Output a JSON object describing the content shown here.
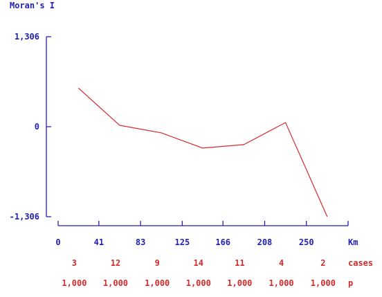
{
  "colors": {
    "axis": "#1f1fb4",
    "series": "#d42a2a",
    "annotation": "#d42a2a"
  },
  "chart_data": {
    "type": "line",
    "ylabel": "Moran's I",
    "xlabel": "Km",
    "x": [
      20.5,
      62,
      104,
      145.5,
      187,
      229,
      271
    ],
    "series": [
      {
        "values": [
          0.56,
          0.02,
          -0.09,
          -0.31,
          -0.26,
          0.06,
          -1.306
        ]
      }
    ],
    "ylim": [
      -1.306,
      1.306
    ],
    "xlim": [
      0,
      292
    ],
    "y_ticks": [
      -1.306,
      0,
      1.306
    ],
    "y_tick_labels": [
      "-1,306",
      "0",
      "1,306"
    ],
    "x_ticks": [
      0,
      41,
      83,
      125,
      166,
      208,
      250
    ],
    "x_tick_labels": [
      "0",
      "41",
      "83",
      "125",
      "166",
      "208",
      "250"
    ],
    "cases_label": "cases",
    "cases": [
      "3",
      "12",
      "9",
      "14",
      "11",
      "4",
      "2"
    ],
    "p_label": "p",
    "p": [
      "1,000",
      "1,000",
      "1,000",
      "1,000",
      "1,000",
      "1,000",
      "1,000"
    ],
    "grid": false,
    "legend": "none"
  }
}
